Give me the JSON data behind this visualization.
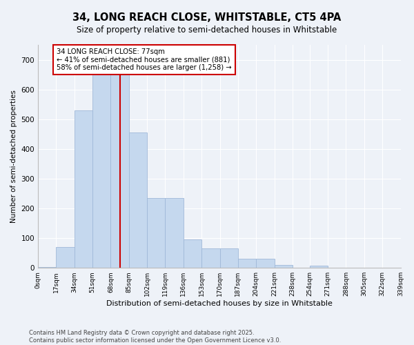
{
  "title1": "34, LONG REACH CLOSE, WHITSTABLE, CT5 4PA",
  "title2": "Size of property relative to semi-detached houses in Whitstable",
  "xlabel": "Distribution of semi-detached houses by size in Whitstable",
  "ylabel": "Number of semi-detached properties",
  "bar_values": [
    2,
    70,
    530,
    650,
    650,
    455,
    235,
    235,
    95,
    65,
    65,
    30,
    30,
    10,
    0,
    8,
    0,
    0,
    0,
    0
  ],
  "bin_edges": [
    0,
    17,
    34,
    51,
    68,
    85,
    102,
    119,
    136,
    153,
    170,
    187,
    204,
    221,
    238,
    254,
    271,
    288,
    305,
    322,
    339
  ],
  "tick_labels": [
    "0sqm",
    "17sqm",
    "34sqm",
    "51sqm",
    "68sqm",
    "85sqm",
    "102sqm",
    "119sqm",
    "136sqm",
    "153sqm",
    "170sqm",
    "187sqm",
    "204sqm",
    "221sqm",
    "238sqm",
    "254sqm",
    "271sqm",
    "288sqm",
    "305sqm",
    "322sqm",
    "339sqm"
  ],
  "bar_color": "#c5d8ee",
  "bar_edge_color": "#a0b8d8",
  "vline_x": 77,
  "vline_color": "#cc0000",
  "annotation_title": "34 LONG REACH CLOSE: 77sqm",
  "annotation_line1": "← 41% of semi-detached houses are smaller (881)",
  "annotation_line2": "58% of semi-detached houses are larger (1,258) →",
  "box_color": "#cc0000",
  "ylim": [
    0,
    750
  ],
  "yticks": [
    0,
    100,
    200,
    300,
    400,
    500,
    600,
    700
  ],
  "background_color": "#eef2f8",
  "grid_color": "#ffffff",
  "footer1": "Contains HM Land Registry data © Crown copyright and database right 2025.",
  "footer2": "Contains public sector information licensed under the Open Government Licence v3.0."
}
